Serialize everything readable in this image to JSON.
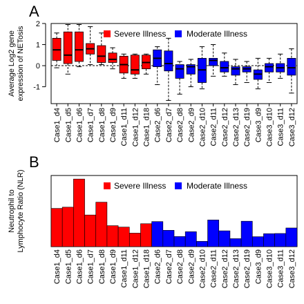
{
  "colors": {
    "severe": "#ff0000",
    "moderate": "#0000ff",
    "axis": "#000000"
  },
  "chart_data": [
    {
      "panel_label": "A",
      "type": "box",
      "ylabel_lines": [
        "Average  Log2 gene",
        "expression of NETosis"
      ],
      "ylim": [
        -1.8,
        2.0
      ],
      "yticks": [
        -1,
        0,
        1,
        2
      ],
      "reference_line": 0,
      "legend": {
        "position": "top-right",
        "entries": [
          {
            "label": "Severe Illness",
            "color": "#ff0000"
          },
          {
            "label": "Moderate Illness",
            "color": "#0000ff"
          }
        ]
      },
      "categories": [
        "Case1_d4",
        "Case1_d5",
        "Case1_d6",
        "Case1_d7",
        "Case1_d8",
        "Case1_d9",
        "Case1_d11",
        "Case1_d12",
        "Case1_d18",
        "Case2_d6",
        "Case2_d7",
        "Case2_d8",
        "Case2_d9",
        "Case2_d10",
        "Case2_d11",
        "Case2_d12",
        "Case2_d13",
        "Case2_d19",
        "Case3_d9",
        "Case3_d10",
        "Case3_d11",
        "Case3_d12"
      ],
      "groups": [
        "severe",
        "severe",
        "severe",
        "severe",
        "severe",
        "severe",
        "severe",
        "severe",
        "severe",
        "moderate",
        "moderate",
        "moderate",
        "moderate",
        "moderate",
        "moderate",
        "moderate",
        "moderate",
        "moderate",
        "moderate",
        "moderate",
        "moderate",
        "moderate"
      ],
      "boxes": [
        {
          "min": -0.1,
          "q1": 0.25,
          "median": 0.75,
          "q3": 1.3,
          "max": 1.55
        },
        {
          "min": -0.4,
          "q1": 0.1,
          "median": 0.5,
          "q3": 1.6,
          "max": 1.95
        },
        {
          "min": -0.05,
          "q1": 0.2,
          "median": 0.75,
          "q3": 1.6,
          "max": 1.95
        },
        {
          "min": 0.05,
          "q1": 0.55,
          "median": 0.8,
          "q3": 1.05,
          "max": 1.85
        },
        {
          "min": 0.05,
          "q1": 0.15,
          "median": 0.45,
          "q3": 0.95,
          "max": 1.55
        },
        {
          "min": -0.15,
          "q1": 0.15,
          "median": 0.3,
          "q3": 0.6,
          "max": 0.85
        },
        {
          "min": -0.6,
          "q1": -0.35,
          "median": 0.05,
          "q3": 0.45,
          "max": 0.55
        },
        {
          "min": -0.6,
          "q1": -0.4,
          "median": -0.2,
          "q3": 0.5,
          "max": 0.55
        },
        {
          "min": -0.4,
          "q1": -0.15,
          "median": 0.15,
          "q3": 0.5,
          "max": 0.55
        },
        {
          "min": -0.9,
          "q1": -0.05,
          "median": 0.35,
          "q3": 0.75,
          "max": 0.9
        },
        {
          "min": -1.65,
          "q1": -0.25,
          "median": 0.1,
          "q3": 0.7,
          "max": 1.3
        },
        {
          "min": -1.35,
          "q1": -0.6,
          "median": -0.15,
          "q3": 0.05,
          "max": 0.2
        },
        {
          "min": -1.0,
          "q1": -0.4,
          "median": -0.05,
          "q3": 0.05,
          "max": 0.3
        },
        {
          "min": -1.1,
          "q1": -0.8,
          "median": -0.2,
          "q3": 0.35,
          "max": 0.9
        },
        {
          "min": -0.5,
          "q1": 0.0,
          "median": 0.25,
          "q3": 0.35,
          "max": 1.0
        },
        {
          "min": -0.5,
          "q1": -0.3,
          "median": -0.1,
          "q3": 0.2,
          "max": 0.6
        },
        {
          "min": -0.9,
          "q1": -0.45,
          "median": -0.15,
          "q3": -0.05,
          "max": 0.3
        },
        {
          "min": -0.8,
          "q1": -0.3,
          "median": -0.15,
          "q3": -0.05,
          "max": 0.2
        },
        {
          "min": -1.1,
          "q1": -0.65,
          "median": -0.4,
          "q3": -0.2,
          "max": 0.35
        },
        {
          "min": -0.8,
          "q1": -0.3,
          "median": -0.05,
          "q3": 0.1,
          "max": 0.35
        },
        {
          "min": -0.6,
          "q1": -0.3,
          "median": -0.1,
          "q3": 0.1,
          "max": 0.55
        },
        {
          "min": -1.3,
          "q1": -0.45,
          "median": -0.1,
          "q3": 0.35,
          "max": 0.8
        }
      ]
    },
    {
      "panel_label": "B",
      "type": "bar",
      "ylabel_lines": [
        "Neutrophil to",
        "Lymphocyte Ratio (NLR)"
      ],
      "ylim": [
        0,
        40
      ],
      "legend": {
        "position": "top-right",
        "entries": [
          {
            "label": "Severe Illness",
            "color": "#ff0000"
          },
          {
            "label": "Moderate Illness",
            "color": "#0000ff"
          }
        ]
      },
      "categories": [
        "Case1_d4",
        "Case1_d5",
        "Case1_d6",
        "Case1_d7",
        "Case1_d8",
        "Case1_d9",
        "Case1_d11",
        "Case1_d12",
        "Case1_d18",
        "Case2_d6",
        "Case2_d7",
        "Case2_d8",
        "Case2_d9",
        "Case2_d10",
        "Case2_d11",
        "Case2_d12",
        "Case2_d13",
        "Case2_d19",
        "Case3_d9",
        "Case3_d10",
        "Case3_d11",
        "Case3_d12"
      ],
      "groups": [
        "severe",
        "severe",
        "severe",
        "severe",
        "severe",
        "severe",
        "severe",
        "severe",
        "severe",
        "moderate",
        "moderate",
        "moderate",
        "moderate",
        "moderate",
        "moderate",
        "moderate",
        "moderate",
        "moderate",
        "moderate",
        "moderate",
        "moderate",
        "moderate"
      ],
      "values": [
        21.5,
        22.2,
        38.0,
        17.8,
        25.0,
        11.8,
        11.0,
        7.6,
        12.9,
        14.1,
        9.2,
        5.7,
        8.4,
        3.0,
        15.0,
        8.9,
        4.5,
        14.3,
        5.6,
        7.3,
        7.4,
        10.5
      ]
    }
  ]
}
